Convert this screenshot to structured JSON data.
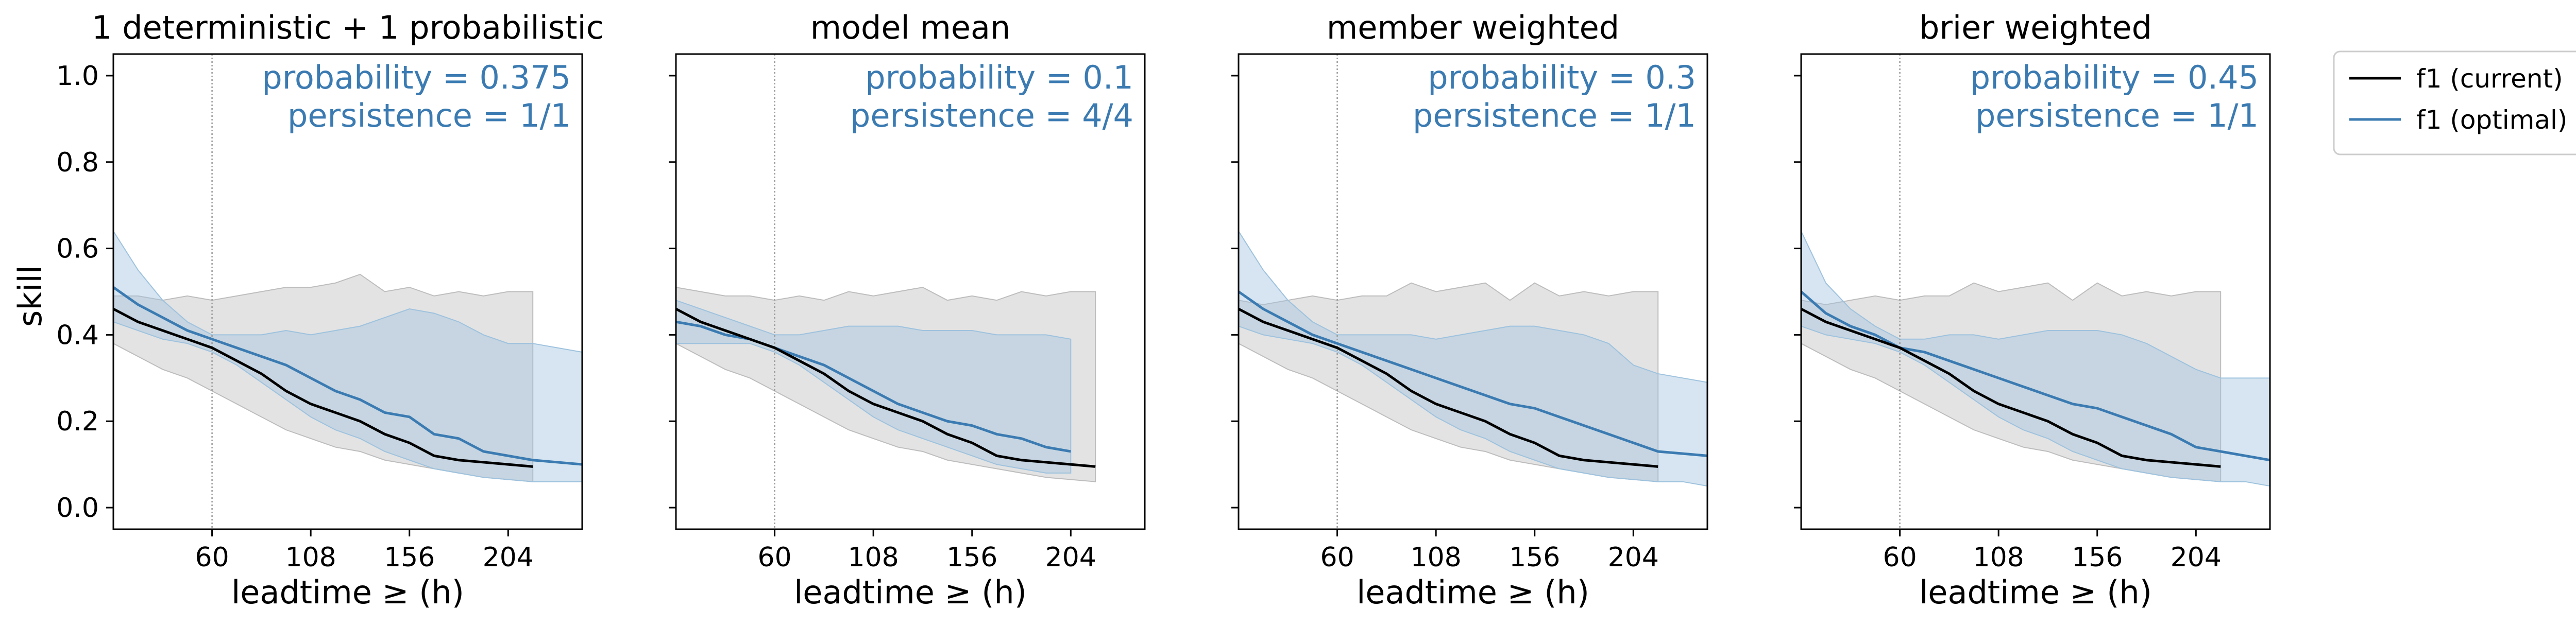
{
  "colors": {
    "current": "#000000",
    "optimal": "#3b7bb2",
    "current_band": "#bdbdbd",
    "optimal_band": "#9ec2de",
    "annotation": "#3b7bb2",
    "vline": "#999999"
  },
  "ylabel": "skill",
  "xlabel": "leadtime ≥ (h)",
  "legend": [
    {
      "label": "f1 (current)",
      "series": "current"
    },
    {
      "label": "f1 (optimal)",
      "series": "optimal"
    }
  ],
  "chart_data": [
    {
      "type": "line",
      "title": "1 deterministic + 1 probabilistic",
      "annotation_probability": "probability = 0.375",
      "annotation_persistence": "persistence = 1/1",
      "xlim": [
        12,
        240
      ],
      "ylim": [
        -0.05,
        1.05
      ],
      "xticks": [
        60,
        108,
        156,
        204
      ],
      "yticks": [
        0.0,
        0.2,
        0.4,
        0.6,
        0.8,
        1.0
      ],
      "vline_x": 60,
      "series": [
        {
          "key": "current",
          "name": "f1 (current)",
          "x": [
            12,
            24,
            36,
            48,
            60,
            72,
            84,
            96,
            108,
            120,
            132,
            144,
            156,
            168,
            180,
            192,
            204,
            216
          ],
          "y": [
            0.46,
            0.43,
            0.41,
            0.39,
            0.37,
            0.34,
            0.31,
            0.27,
            0.24,
            0.22,
            0.2,
            0.17,
            0.15,
            0.12,
            0.11,
            0.105,
            0.1,
            0.095
          ],
          "lower": [
            0.38,
            0.35,
            0.32,
            0.3,
            0.27,
            0.24,
            0.21,
            0.18,
            0.16,
            0.14,
            0.13,
            0.11,
            0.1,
            0.09,
            0.08,
            0.07,
            0.065,
            0.06
          ],
          "upper": [
            0.49,
            0.49,
            0.48,
            0.49,
            0.48,
            0.49,
            0.5,
            0.51,
            0.51,
            0.52,
            0.54,
            0.5,
            0.51,
            0.49,
            0.5,
            0.49,
            0.5,
            0.5
          ]
        },
        {
          "key": "optimal",
          "name": "f1 (optimal)",
          "x": [
            12,
            24,
            36,
            48,
            60,
            72,
            84,
            96,
            108,
            120,
            132,
            144,
            156,
            168,
            180,
            192,
            204,
            216,
            228,
            240
          ],
          "y": [
            0.51,
            0.47,
            0.44,
            0.41,
            0.39,
            0.37,
            0.35,
            0.33,
            0.3,
            0.27,
            0.25,
            0.22,
            0.21,
            0.17,
            0.16,
            0.13,
            0.12,
            0.11,
            0.105,
            0.1
          ],
          "lower": [
            0.43,
            0.41,
            0.39,
            0.38,
            0.36,
            0.33,
            0.29,
            0.25,
            0.21,
            0.18,
            0.16,
            0.13,
            0.11,
            0.09,
            0.08,
            0.07,
            0.065,
            0.06,
            0.06,
            0.06
          ],
          "upper": [
            0.64,
            0.55,
            0.48,
            0.43,
            0.4,
            0.4,
            0.4,
            0.41,
            0.4,
            0.41,
            0.42,
            0.44,
            0.46,
            0.45,
            0.43,
            0.4,
            0.38,
            0.38,
            0.37,
            0.36
          ]
        }
      ]
    },
    {
      "type": "line",
      "title": "model mean",
      "annotation_probability": "probability = 0.1",
      "annotation_persistence": "persistence = 4/4",
      "xlim": [
        12,
        240
      ],
      "ylim": [
        -0.05,
        1.05
      ],
      "xticks": [
        60,
        108,
        156,
        204
      ],
      "yticks": [
        0.0,
        0.2,
        0.4,
        0.6,
        0.8,
        1.0
      ],
      "vline_x": 60,
      "series": [
        {
          "key": "current",
          "name": "f1 (current)",
          "x": [
            12,
            24,
            36,
            48,
            60,
            72,
            84,
            96,
            108,
            120,
            132,
            144,
            156,
            168,
            180,
            192,
            204,
            216
          ],
          "y": [
            0.46,
            0.43,
            0.41,
            0.39,
            0.37,
            0.34,
            0.31,
            0.27,
            0.24,
            0.22,
            0.2,
            0.17,
            0.15,
            0.12,
            0.11,
            0.105,
            0.1,
            0.095
          ],
          "lower": [
            0.38,
            0.35,
            0.32,
            0.3,
            0.27,
            0.24,
            0.21,
            0.18,
            0.16,
            0.14,
            0.13,
            0.11,
            0.1,
            0.09,
            0.08,
            0.07,
            0.065,
            0.06
          ],
          "upper": [
            0.51,
            0.5,
            0.49,
            0.49,
            0.48,
            0.49,
            0.48,
            0.5,
            0.49,
            0.5,
            0.51,
            0.48,
            0.49,
            0.48,
            0.5,
            0.49,
            0.5,
            0.5
          ]
        },
        {
          "key": "optimal",
          "name": "f1 (optimal)",
          "x": [
            12,
            24,
            36,
            48,
            60,
            72,
            84,
            96,
            108,
            120,
            132,
            144,
            156,
            168,
            180,
            192,
            204
          ],
          "y": [
            0.43,
            0.42,
            0.4,
            0.39,
            0.37,
            0.35,
            0.33,
            0.3,
            0.27,
            0.24,
            0.22,
            0.2,
            0.19,
            0.17,
            0.16,
            0.14,
            0.13
          ],
          "lower": [
            0.38,
            0.38,
            0.38,
            0.38,
            0.36,
            0.33,
            0.29,
            0.25,
            0.21,
            0.18,
            0.16,
            0.14,
            0.12,
            0.1,
            0.09,
            0.08,
            0.08
          ],
          "upper": [
            0.48,
            0.46,
            0.44,
            0.42,
            0.4,
            0.4,
            0.41,
            0.42,
            0.42,
            0.42,
            0.41,
            0.41,
            0.41,
            0.4,
            0.4,
            0.4,
            0.39
          ]
        }
      ]
    },
    {
      "type": "line",
      "title": "member weighted",
      "annotation_probability": "probability = 0.3",
      "annotation_persistence": "persistence = 1/1",
      "xlim": [
        12,
        240
      ],
      "ylim": [
        -0.05,
        1.05
      ],
      "xticks": [
        60,
        108,
        156,
        204
      ],
      "yticks": [
        0.0,
        0.2,
        0.4,
        0.6,
        0.8,
        1.0
      ],
      "vline_x": 60,
      "series": [
        {
          "key": "current",
          "name": "f1 (current)",
          "x": [
            12,
            24,
            36,
            48,
            60,
            72,
            84,
            96,
            108,
            120,
            132,
            144,
            156,
            168,
            180,
            192,
            204,
            216
          ],
          "y": [
            0.46,
            0.43,
            0.41,
            0.39,
            0.37,
            0.34,
            0.31,
            0.27,
            0.24,
            0.22,
            0.2,
            0.17,
            0.15,
            0.12,
            0.11,
            0.105,
            0.1,
            0.095
          ],
          "lower": [
            0.38,
            0.35,
            0.32,
            0.3,
            0.27,
            0.24,
            0.21,
            0.18,
            0.16,
            0.14,
            0.13,
            0.11,
            0.1,
            0.09,
            0.08,
            0.07,
            0.065,
            0.06
          ],
          "upper": [
            0.48,
            0.47,
            0.48,
            0.49,
            0.48,
            0.49,
            0.49,
            0.52,
            0.5,
            0.51,
            0.52,
            0.48,
            0.52,
            0.49,
            0.5,
            0.49,
            0.5,
            0.5
          ]
        },
        {
          "key": "optimal",
          "name": "f1 (optimal)",
          "x": [
            12,
            24,
            36,
            48,
            60,
            72,
            84,
            96,
            108,
            120,
            132,
            144,
            156,
            168,
            180,
            192,
            204,
            216,
            228,
            240
          ],
          "y": [
            0.5,
            0.46,
            0.43,
            0.4,
            0.38,
            0.36,
            0.34,
            0.32,
            0.3,
            0.28,
            0.26,
            0.24,
            0.23,
            0.21,
            0.19,
            0.17,
            0.15,
            0.13,
            0.125,
            0.12
          ],
          "lower": [
            0.42,
            0.4,
            0.39,
            0.38,
            0.36,
            0.33,
            0.29,
            0.25,
            0.21,
            0.18,
            0.16,
            0.13,
            0.11,
            0.09,
            0.08,
            0.07,
            0.065,
            0.06,
            0.06,
            0.05
          ],
          "upper": [
            0.64,
            0.55,
            0.48,
            0.43,
            0.4,
            0.4,
            0.4,
            0.4,
            0.39,
            0.4,
            0.41,
            0.42,
            0.42,
            0.41,
            0.4,
            0.38,
            0.33,
            0.31,
            0.3,
            0.29
          ]
        }
      ]
    },
    {
      "type": "line",
      "title": "brier weighted",
      "annotation_probability": "probability = 0.45",
      "annotation_persistence": "persistence = 1/1",
      "xlim": [
        12,
        240
      ],
      "ylim": [
        -0.05,
        1.05
      ],
      "xticks": [
        60,
        108,
        156,
        204
      ],
      "yticks": [
        0.0,
        0.2,
        0.4,
        0.6,
        0.8,
        1.0
      ],
      "vline_x": 60,
      "series": [
        {
          "key": "current",
          "name": "f1 (current)",
          "x": [
            12,
            24,
            36,
            48,
            60,
            72,
            84,
            96,
            108,
            120,
            132,
            144,
            156,
            168,
            180,
            192,
            204,
            216
          ],
          "y": [
            0.46,
            0.43,
            0.41,
            0.39,
            0.37,
            0.34,
            0.31,
            0.27,
            0.24,
            0.22,
            0.2,
            0.17,
            0.15,
            0.12,
            0.11,
            0.105,
            0.1,
            0.095
          ],
          "lower": [
            0.38,
            0.35,
            0.32,
            0.3,
            0.27,
            0.24,
            0.21,
            0.18,
            0.16,
            0.14,
            0.13,
            0.11,
            0.1,
            0.09,
            0.08,
            0.07,
            0.065,
            0.06
          ],
          "upper": [
            0.48,
            0.47,
            0.48,
            0.49,
            0.48,
            0.49,
            0.49,
            0.52,
            0.5,
            0.51,
            0.52,
            0.48,
            0.52,
            0.49,
            0.5,
            0.49,
            0.5,
            0.5
          ]
        },
        {
          "key": "optimal",
          "name": "f1 (optimal)",
          "x": [
            12,
            24,
            36,
            48,
            60,
            72,
            84,
            96,
            108,
            120,
            132,
            144,
            156,
            168,
            180,
            192,
            204,
            216,
            228,
            240
          ],
          "y": [
            0.5,
            0.45,
            0.42,
            0.4,
            0.37,
            0.36,
            0.34,
            0.32,
            0.3,
            0.28,
            0.26,
            0.24,
            0.23,
            0.21,
            0.19,
            0.17,
            0.14,
            0.13,
            0.12,
            0.11
          ],
          "lower": [
            0.42,
            0.4,
            0.39,
            0.38,
            0.36,
            0.33,
            0.29,
            0.25,
            0.21,
            0.18,
            0.16,
            0.13,
            0.11,
            0.09,
            0.08,
            0.07,
            0.065,
            0.06,
            0.06,
            0.05
          ],
          "upper": [
            0.64,
            0.52,
            0.46,
            0.42,
            0.39,
            0.39,
            0.4,
            0.4,
            0.39,
            0.4,
            0.41,
            0.41,
            0.41,
            0.4,
            0.38,
            0.35,
            0.32,
            0.3,
            0.3,
            0.3
          ]
        }
      ]
    }
  ]
}
